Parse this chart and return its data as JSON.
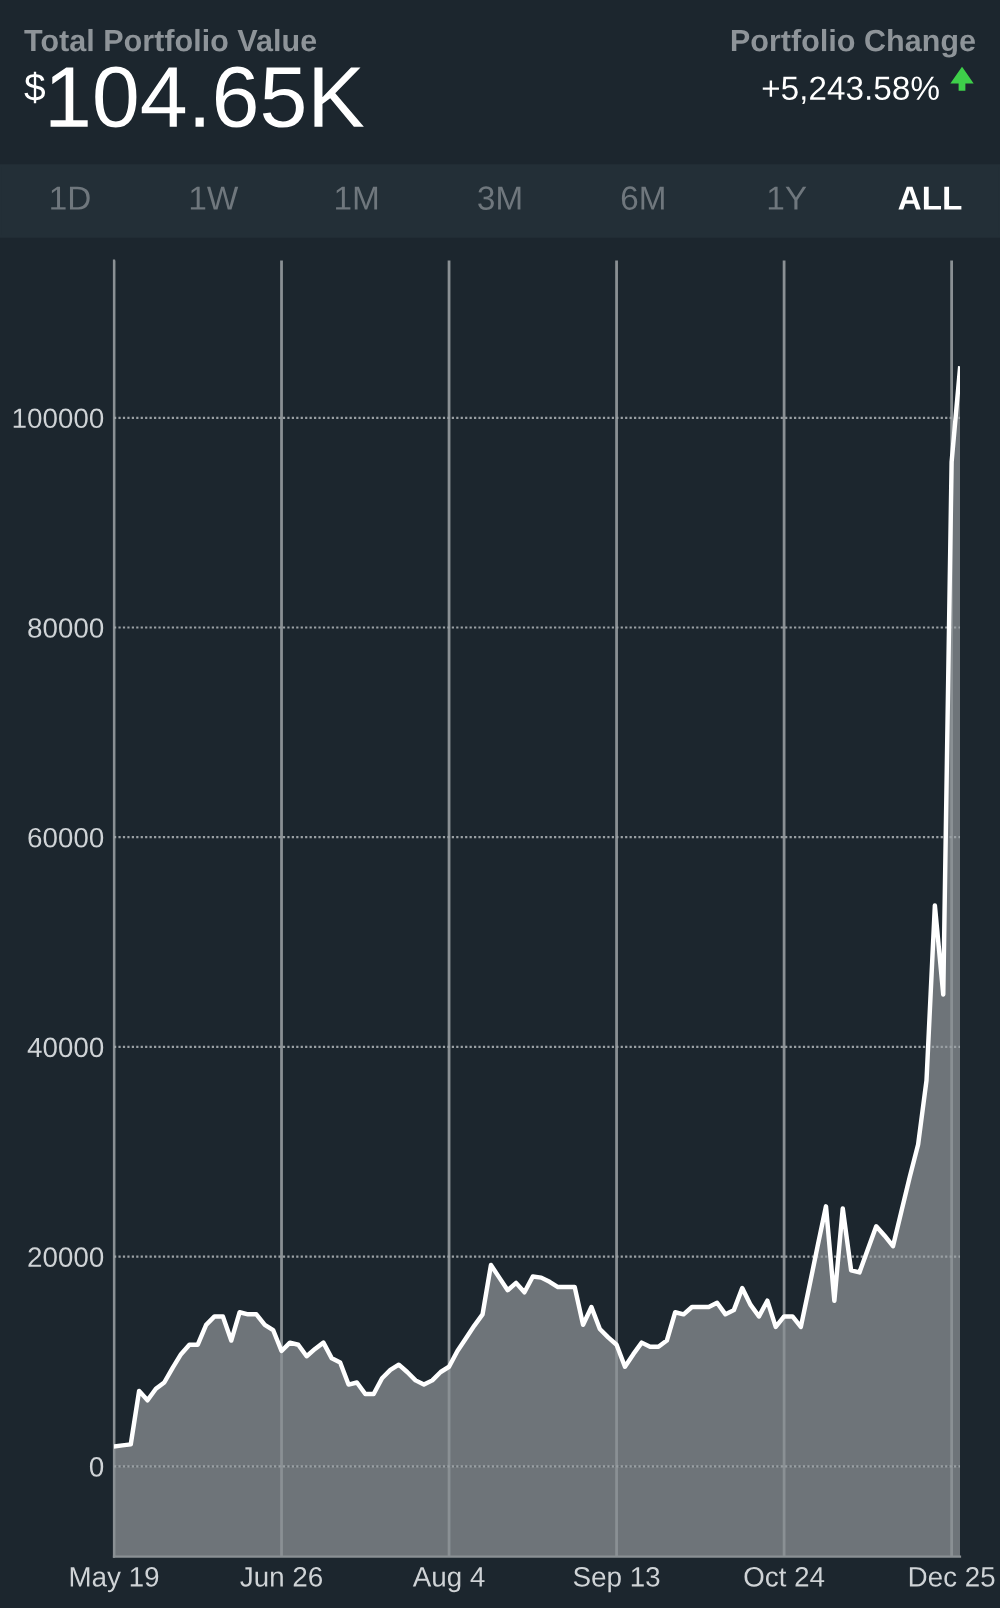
{
  "chart_data": {
    "type": "area",
    "title": "Total Portfolio Value",
    "annotations": [
      "$",
      "104.65K",
      "Portfolio Change",
      "+5,243.58%",
      "1D",
      "1W",
      "1M",
      "3M",
      "6M",
      "1Y",
      "ALL"
    ],
    "categories": [
      "May 19",
      null,
      null,
      null,
      null,
      null,
      null,
      null,
      null,
      null,
      null,
      null,
      null,
      null,
      null,
      null,
      null,
      null,
      null,
      null,
      "Jun 26",
      null,
      null,
      null,
      null,
      null,
      null,
      null,
      null,
      null,
      null,
      null,
      null,
      null,
      null,
      null,
      null,
      null,
      null,
      null,
      "Aug 4",
      null,
      null,
      null,
      null,
      null,
      null,
      null,
      null,
      null,
      null,
      null,
      null,
      null,
      null,
      null,
      null,
      null,
      null,
      null,
      "Sep 13",
      null,
      null,
      null,
      null,
      null,
      null,
      null,
      null,
      null,
      null,
      null,
      null,
      null,
      null,
      null,
      null,
      null,
      null,
      null,
      "Oct 24",
      null,
      null,
      null,
      null,
      null,
      null,
      null,
      null,
      null,
      null,
      null,
      null,
      null,
      null,
      null,
      null,
      null,
      null,
      null,
      "Dec 25",
      null
    ],
    "series": [
      {
        "color": "#6e7479",
        "values": [
          1900,
          2000,
          2100,
          7200,
          6300,
          7400,
          8000,
          9400,
          10700,
          11600,
          11600,
          13500,
          14300,
          14300,
          12000,
          14700,
          14500,
          14500,
          13500,
          13000,
          11000,
          11800,
          11600,
          10500,
          11200,
          11800,
          10300,
          9900,
          7800,
          8000,
          6900,
          6900,
          8400,
          9200,
          9700,
          9000,
          8200,
          7800,
          8200,
          9000,
          9500,
          11000,
          12200,
          13400,
          14500,
          19200,
          18000,
          16800,
          17500,
          16600,
          18100,
          18000,
          17600,
          17100,
          17100,
          17100,
          13500,
          15200,
          13100,
          12300,
          11600,
          9500,
          10700,
          11800,
          11400,
          11400,
          12000,
          14700,
          14500,
          15200,
          15200,
          15200,
          15600,
          14500,
          14900,
          17000,
          15400,
          14300,
          15800,
          13300,
          14300,
          14300,
          13300,
          17100,
          21000,
          24800,
          15800,
          24600,
          18700,
          18500,
          20700,
          22900,
          22000,
          21000,
          24300,
          27600,
          30700,
          36800,
          53500,
          45000,
          95800,
          104700
        ]
      }
    ],
    "ylim": [
      -8600,
      115000
    ],
    "yticks": [
      0,
      20000,
      40000,
      60000,
      80000,
      100000
    ],
    "bands": [
      {
        "axis": "y",
        "from": -8600,
        "to": 0,
        "color": "#6e7479"
      }
    ],
    "grid": true
  }
}
